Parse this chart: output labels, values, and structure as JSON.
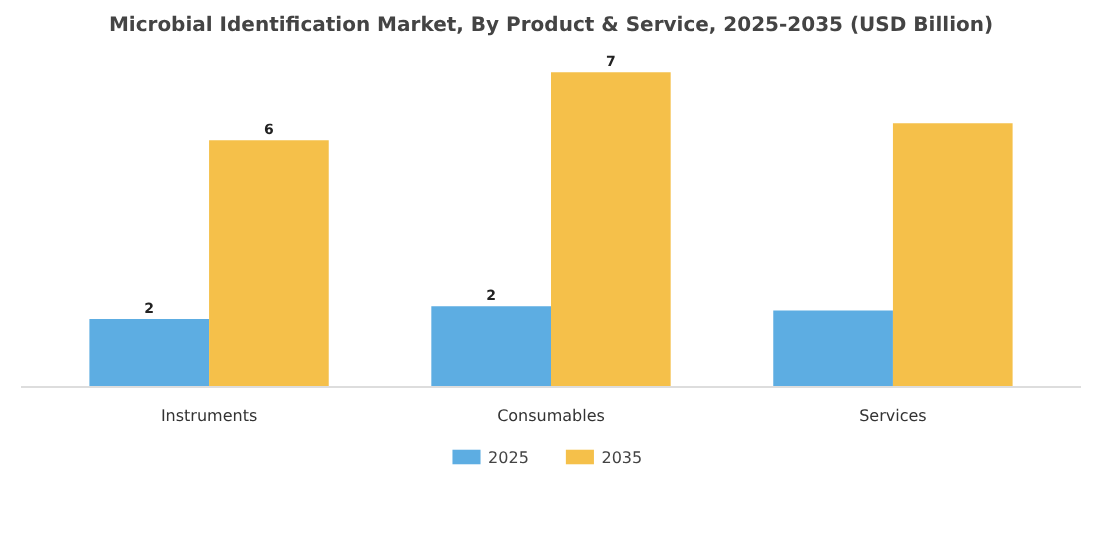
{
  "chart_data": {
    "type": "bar",
    "title": "Microbial Identification Market, By Product & Service, 2025-2035 (USD Billion)",
    "categories": [
      "Instruments",
      "Consumables",
      "Services"
    ],
    "series": [
      {
        "name": "2025",
        "color": "#5dade2",
        "values": [
          1.6,
          1.9,
          1.8
        ],
        "value_labels": [
          "2",
          "2",
          null
        ]
      },
      {
        "name": "2035",
        "color": "#f5c04a",
        "values": [
          5.8,
          7.4,
          6.2
        ],
        "value_labels": [
          "6",
          "7",
          null
        ]
      }
    ],
    "legend": "bottom"
  }
}
